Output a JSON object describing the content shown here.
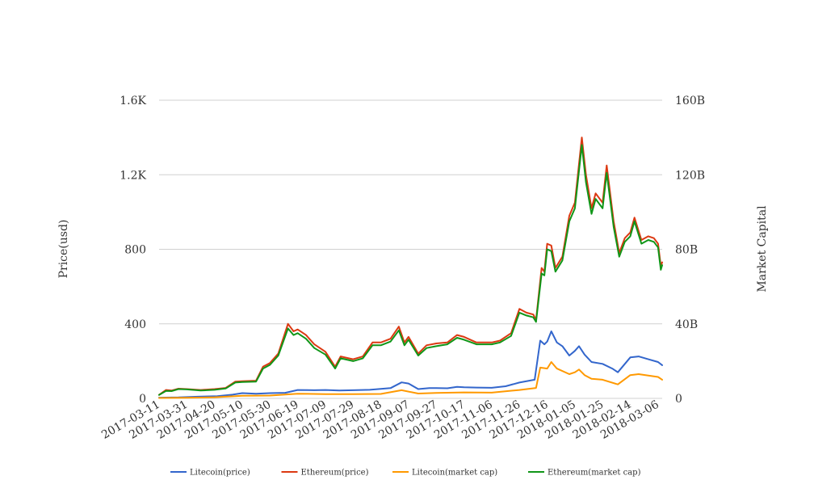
{
  "chart_data": {
    "type": "line",
    "title": "",
    "xlabel": "",
    "ylabel": "Price(usd)",
    "y2label": "Market Capital",
    "ylim": [
      0,
      1600
    ],
    "y2lim": [
      0,
      160
    ],
    "y_ticks": [
      "0",
      "400",
      "800",
      "1.2K",
      "1.6K"
    ],
    "y2_ticks": [
      "0",
      "40B",
      "80B",
      "120B",
      "160B"
    ],
    "x_tick_labels": [
      "2017-03-11",
      "2017-03-31",
      "2017-04-20",
      "2017-05-10",
      "2017-05-30",
      "2017-06-19",
      "2017-07-09",
      "2017-07-29",
      "2017-08-18",
      "2017-09-07",
      "2017-09-27",
      "2017-10-17",
      "2017-11-06",
      "2017-11-26",
      "2017-12-16",
      "2018-01-05",
      "2018-01-25",
      "2018-02-14",
      "2018-03-06"
    ],
    "grid": true,
    "legend_position": "bottom",
    "x_unit": "date",
    "series": [
      {
        "name": "Litecoin(price)",
        "axis": "left",
        "color": "#3366cc",
        "points": [
          [
            "2017-03-11",
            4
          ],
          [
            "2017-03-25",
            5
          ],
          [
            "2017-04-08",
            9
          ],
          [
            "2017-04-22",
            12
          ],
          [
            "2017-05-03",
            20
          ],
          [
            "2017-05-10",
            28
          ],
          [
            "2017-05-20",
            25
          ],
          [
            "2017-05-30",
            28
          ],
          [
            "2017-06-10",
            30
          ],
          [
            "2017-06-19",
            45
          ],
          [
            "2017-07-01",
            44
          ],
          [
            "2017-07-09",
            45
          ],
          [
            "2017-07-19",
            42
          ],
          [
            "2017-07-29",
            44
          ],
          [
            "2017-08-10",
            46
          ],
          [
            "2017-08-25",
            55
          ],
          [
            "2017-09-02",
            86
          ],
          [
            "2017-09-07",
            80
          ],
          [
            "2017-09-14",
            50
          ],
          [
            "2017-09-22",
            55
          ],
          [
            "2017-09-27",
            55
          ],
          [
            "2017-10-05",
            54
          ],
          [
            "2017-10-12",
            62
          ],
          [
            "2017-10-17",
            60
          ],
          [
            "2017-10-26",
            58
          ],
          [
            "2017-11-06",
            57
          ],
          [
            "2017-11-16",
            65
          ],
          [
            "2017-11-26",
            85
          ],
          [
            "2017-12-07",
            100
          ],
          [
            "2017-12-11",
            310
          ],
          [
            "2017-12-14",
            290
          ],
          [
            "2017-12-16",
            305
          ],
          [
            "2017-12-19",
            360
          ],
          [
            "2017-12-23",
            300
          ],
          [
            "2017-12-27",
            280
          ],
          [
            "2018-01-01",
            230
          ],
          [
            "2018-01-05",
            255
          ],
          [
            "2018-01-08",
            280
          ],
          [
            "2018-01-12",
            235
          ],
          [
            "2018-01-17",
            195
          ],
          [
            "2018-01-25",
            185
          ],
          [
            "2018-02-01",
            160
          ],
          [
            "2018-02-05",
            140
          ],
          [
            "2018-02-14",
            220
          ],
          [
            "2018-02-20",
            225
          ],
          [
            "2018-02-27",
            210
          ],
          [
            "2018-03-06",
            195
          ],
          [
            "2018-03-09",
            178
          ]
        ]
      },
      {
        "name": "Ethereum(price)",
        "axis": "left",
        "color": "#dc3912",
        "points": [
          [
            "2017-03-11",
            19
          ],
          [
            "2017-03-16",
            45
          ],
          [
            "2017-03-20",
            42
          ],
          [
            "2017-03-25",
            52
          ],
          [
            "2017-03-31",
            50
          ],
          [
            "2017-04-10",
            45
          ],
          [
            "2017-04-20",
            50
          ],
          [
            "2017-04-28",
            56
          ],
          [
            "2017-05-05",
            90
          ],
          [
            "2017-05-10",
            92
          ],
          [
            "2017-05-20",
            95
          ],
          [
            "2017-05-25",
            170
          ],
          [
            "2017-05-30",
            190
          ],
          [
            "2017-06-05",
            240
          ],
          [
            "2017-06-12",
            400
          ],
          [
            "2017-06-16",
            360
          ],
          [
            "2017-06-19",
            370
          ],
          [
            "2017-06-25",
            340
          ],
          [
            "2017-07-01",
            290
          ],
          [
            "2017-07-09",
            250
          ],
          [
            "2017-07-16",
            170
          ],
          [
            "2017-07-20",
            225
          ],
          [
            "2017-07-29",
            210
          ],
          [
            "2017-08-05",
            225
          ],
          [
            "2017-08-12",
            300
          ],
          [
            "2017-08-18",
            300
          ],
          [
            "2017-08-25",
            320
          ],
          [
            "2017-08-31",
            385
          ],
          [
            "2017-09-04",
            300
          ],
          [
            "2017-09-07",
            330
          ],
          [
            "2017-09-14",
            240
          ],
          [
            "2017-09-20",
            285
          ],
          [
            "2017-09-27",
            295
          ],
          [
            "2017-10-05",
            300
          ],
          [
            "2017-10-12",
            340
          ],
          [
            "2017-10-17",
            330
          ],
          [
            "2017-10-26",
            300
          ],
          [
            "2017-11-06",
            300
          ],
          [
            "2017-11-12",
            310
          ],
          [
            "2017-11-20",
            350
          ],
          [
            "2017-11-26",
            480
          ],
          [
            "2017-12-01",
            460
          ],
          [
            "2017-12-06",
            450
          ],
          [
            "2017-12-08",
            420
          ],
          [
            "2017-12-12",
            700
          ],
          [
            "2017-12-14",
            680
          ],
          [
            "2017-12-16",
            830
          ],
          [
            "2017-12-19",
            820
          ],
          [
            "2017-12-22",
            700
          ],
          [
            "2017-12-27",
            760
          ],
          [
            "2018-01-01",
            980
          ],
          [
            "2018-01-05",
            1050
          ],
          [
            "2018-01-10",
            1400
          ],
          [
            "2018-01-13",
            1200
          ],
          [
            "2018-01-17",
            1020
          ],
          [
            "2018-01-20",
            1100
          ],
          [
            "2018-01-25",
            1050
          ],
          [
            "2018-01-28",
            1250
          ],
          [
            "2018-02-02",
            950
          ],
          [
            "2018-02-06",
            780
          ],
          [
            "2018-02-10",
            860
          ],
          [
            "2018-02-14",
            890
          ],
          [
            "2018-02-17",
            970
          ],
          [
            "2018-02-22",
            850
          ],
          [
            "2018-02-27",
            870
          ],
          [
            "2018-03-03",
            860
          ],
          [
            "2018-03-06",
            830
          ],
          [
            "2018-03-08",
            710
          ],
          [
            "2018-03-09",
            730
          ]
        ]
      },
      {
        "name": "Litecoin(market cap)",
        "axis": "right",
        "color": "#ff9900",
        "points": [
          [
            "2017-03-11",
            0.2
          ],
          [
            "2017-03-31",
            0.3
          ],
          [
            "2017-04-20",
            0.6
          ],
          [
            "2017-05-10",
            1.4
          ],
          [
            "2017-05-30",
            1.5
          ],
          [
            "2017-06-19",
            2.5
          ],
          [
            "2017-07-09",
            2.3
          ],
          [
            "2017-07-29",
            2.3
          ],
          [
            "2017-08-18",
            2.4
          ],
          [
            "2017-09-02",
            4.4
          ],
          [
            "2017-09-14",
            2.6
          ],
          [
            "2017-09-27",
            2.9
          ],
          [
            "2017-10-17",
            3.2
          ],
          [
            "2017-11-06",
            3.1
          ],
          [
            "2017-11-26",
            4.5
          ],
          [
            "2017-12-08",
            5.6
          ],
          [
            "2017-12-11",
            16.5
          ],
          [
            "2017-12-16",
            16.0
          ],
          [
            "2017-12-19",
            19.5
          ],
          [
            "2017-12-23",
            16.0
          ],
          [
            "2018-01-01",
            13.0
          ],
          [
            "2018-01-05",
            14.0
          ],
          [
            "2018-01-08",
            15.5
          ],
          [
            "2018-01-12",
            12.5
          ],
          [
            "2018-01-17",
            10.5
          ],
          [
            "2018-01-25",
            10.0
          ],
          [
            "2018-02-05",
            7.5
          ],
          [
            "2018-02-14",
            12.5
          ],
          [
            "2018-02-20",
            13.0
          ],
          [
            "2018-03-06",
            11.5
          ],
          [
            "2018-03-09",
            10.0
          ]
        ]
      },
      {
        "name": "Ethereum(market cap)",
        "axis": "right",
        "color": "#109618",
        "points": [
          [
            "2017-03-11",
            1.8
          ],
          [
            "2017-03-16",
            4.0
          ],
          [
            "2017-03-20",
            3.9
          ],
          [
            "2017-03-25",
            5.0
          ],
          [
            "2017-03-31",
            4.8
          ],
          [
            "2017-04-10",
            4.2
          ],
          [
            "2017-04-20",
            4.6
          ],
          [
            "2017-04-28",
            5.3
          ],
          [
            "2017-05-05",
            8.5
          ],
          [
            "2017-05-10",
            8.8
          ],
          [
            "2017-05-20",
            9.0
          ],
          [
            "2017-05-25",
            16.0
          ],
          [
            "2017-05-30",
            18.0
          ],
          [
            "2017-06-05",
            23.0
          ],
          [
            "2017-06-12",
            37.5
          ],
          [
            "2017-06-16",
            34.0
          ],
          [
            "2017-06-19",
            35.0
          ],
          [
            "2017-06-25",
            32.0
          ],
          [
            "2017-07-01",
            27.0
          ],
          [
            "2017-07-09",
            23.5
          ],
          [
            "2017-07-16",
            16.0
          ],
          [
            "2017-07-20",
            21.5
          ],
          [
            "2017-07-29",
            20.0
          ],
          [
            "2017-08-05",
            21.5
          ],
          [
            "2017-08-12",
            28.5
          ],
          [
            "2017-08-18",
            28.5
          ],
          [
            "2017-08-25",
            30.5
          ],
          [
            "2017-08-31",
            36.5
          ],
          [
            "2017-09-04",
            28.5
          ],
          [
            "2017-09-07",
            31.5
          ],
          [
            "2017-09-14",
            23.0
          ],
          [
            "2017-09-20",
            27.0
          ],
          [
            "2017-09-27",
            28.0
          ],
          [
            "2017-10-05",
            29.0
          ],
          [
            "2017-10-12",
            32.5
          ],
          [
            "2017-10-17",
            31.5
          ],
          [
            "2017-10-26",
            29.0
          ],
          [
            "2017-11-06",
            29.0
          ],
          [
            "2017-11-12",
            30.0
          ],
          [
            "2017-11-20",
            33.5
          ],
          [
            "2017-11-26",
            46.0
          ],
          [
            "2017-12-01",
            44.5
          ],
          [
            "2017-12-06",
            43.5
          ],
          [
            "2017-12-08",
            41.0
          ],
          [
            "2017-12-12",
            67.0
          ],
          [
            "2017-12-14",
            66.0
          ],
          [
            "2017-12-16",
            80.0
          ],
          [
            "2017-12-19",
            79.0
          ],
          [
            "2017-12-22",
            68.0
          ],
          [
            "2017-12-27",
            74.0
          ],
          [
            "2018-01-01",
            95.0
          ],
          [
            "2018-01-05",
            102.0
          ],
          [
            "2018-01-10",
            136.0
          ],
          [
            "2018-01-13",
            116.0
          ],
          [
            "2018-01-17",
            99.0
          ],
          [
            "2018-01-20",
            107.0
          ],
          [
            "2018-01-25",
            102.0
          ],
          [
            "2018-01-28",
            121.0
          ],
          [
            "2018-02-02",
            92.0
          ],
          [
            "2018-02-06",
            76.0
          ],
          [
            "2018-02-10",
            84.0
          ],
          [
            "2018-02-14",
            87.0
          ],
          [
            "2018-02-17",
            95.0
          ],
          [
            "2018-02-22",
            83.0
          ],
          [
            "2018-02-27",
            85.0
          ],
          [
            "2018-03-03",
            84.0
          ],
          [
            "2018-03-06",
            81.0
          ],
          [
            "2018-03-08",
            69.0
          ],
          [
            "2018-03-09",
            71.5
          ]
        ]
      }
    ]
  }
}
